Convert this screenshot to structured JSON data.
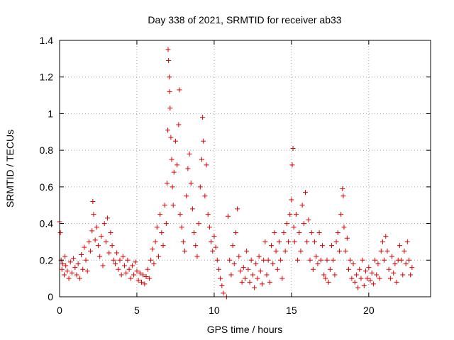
{
  "chart_data": {
    "type": "scatter",
    "title": "Day 338 of 2021, SRMTID for receiver ab33",
    "xlabel": "GPS time / hours",
    "ylabel": "SRMTID / TECUs",
    "xlim": [
      0,
      24
    ],
    "ylim": [
      0,
      1.4
    ],
    "xticks": [
      0,
      5,
      10,
      15,
      20
    ],
    "xtick_labels": [
      "0",
      "5",
      "10",
      "15",
      "20"
    ],
    "yticks": [
      0,
      0.2,
      0.4,
      0.6,
      0.8,
      1.0,
      1.2,
      1.4
    ],
    "ytick_labels": [
      "0",
      "0.2",
      "0.4",
      "0.6",
      "0.8",
      "1",
      "1.2",
      "1.4"
    ],
    "grid": true,
    "marker": "+",
    "colors": {
      "series": "#e00000",
      "grid": "#a0a0a0",
      "axes": "#000000"
    },
    "series": [
      {
        "name": "SRMTID",
        "points": [
          [
            0.0,
            0.41
          ],
          [
            0.05,
            0.35
          ],
          [
            0.1,
            0.2
          ],
          [
            0.15,
            0.15
          ],
          [
            0.2,
            0.18
          ],
          [
            0.3,
            0.12
          ],
          [
            0.35,
            0.22
          ],
          [
            0.4,
            0.17
          ],
          [
            0.5,
            0.14
          ],
          [
            0.6,
            0.1
          ],
          [
            0.7,
            0.19
          ],
          [
            0.8,
            0.13
          ],
          [
            0.9,
            0.21
          ],
          [
            1.0,
            0.16
          ],
          [
            1.1,
            0.12
          ],
          [
            1.2,
            0.18
          ],
          [
            1.3,
            0.1
          ],
          [
            1.4,
            0.23
          ],
          [
            1.5,
            0.15
          ],
          [
            1.6,
            0.27
          ],
          [
            1.7,
            0.2
          ],
          [
            1.8,
            0.14
          ],
          [
            1.9,
            0.3
          ],
          [
            2.0,
            0.25
          ],
          [
            2.1,
            0.36
          ],
          [
            2.15,
            0.52
          ],
          [
            2.2,
            0.45
          ],
          [
            2.3,
            0.31
          ],
          [
            2.4,
            0.38
          ],
          [
            2.5,
            0.28
          ],
          [
            2.6,
            0.22
          ],
          [
            2.7,
            0.33
          ],
          [
            2.8,
            0.17
          ],
          [
            2.9,
            0.4
          ],
          [
            3.0,
            0.3
          ],
          [
            3.1,
            0.43
          ],
          [
            3.2,
            0.24
          ],
          [
            3.3,
            0.35
          ],
          [
            3.4,
            0.28
          ],
          [
            3.5,
            0.2
          ],
          [
            3.6,
            0.18
          ],
          [
            3.7,
            0.24
          ],
          [
            3.8,
            0.15
          ],
          [
            3.9,
            0.2
          ],
          [
            4.0,
            0.12
          ],
          [
            4.1,
            0.22
          ],
          [
            4.2,
            0.17
          ],
          [
            4.3,
            0.13
          ],
          [
            4.4,
            0.2
          ],
          [
            4.5,
            0.15
          ],
          [
            4.6,
            0.1
          ],
          [
            4.7,
            0.17
          ],
          [
            4.8,
            0.12
          ],
          [
            4.9,
            0.19
          ],
          [
            5.0,
            0.14
          ],
          [
            5.1,
            0.09
          ],
          [
            5.2,
            0.13
          ],
          [
            5.3,
            0.08
          ],
          [
            5.4,
            0.12
          ],
          [
            5.5,
            0.07
          ],
          [
            5.6,
            0.11
          ],
          [
            5.7,
            0.15
          ],
          [
            5.8,
            0.1
          ],
          [
            5.9,
            0.2
          ],
          [
            6.0,
            0.26
          ],
          [
            6.1,
            0.18
          ],
          [
            6.2,
            0.3
          ],
          [
            6.3,
            0.38
          ],
          [
            6.4,
            0.22
          ],
          [
            6.5,
            0.45
          ],
          [
            6.6,
            0.35
          ],
          [
            6.7,
            0.28
          ],
          [
            6.8,
            0.5
          ],
          [
            6.9,
            0.4
          ],
          [
            6.95,
            0.62
          ],
          [
            7.0,
            0.91
          ],
          [
            7.02,
            1.35
          ],
          [
            7.05,
            1.29
          ],
          [
            7.1,
            1.2
          ],
          [
            7.12,
            1.12
          ],
          [
            7.15,
            1.03
          ],
          [
            7.2,
            0.87
          ],
          [
            7.25,
            0.75
          ],
          [
            7.3,
            0.6
          ],
          [
            7.35,
            0.5
          ],
          [
            7.4,
            0.68
          ],
          [
            7.5,
            0.85
          ],
          [
            7.6,
            0.72
          ],
          [
            7.7,
            0.94
          ],
          [
            7.75,
            1.13
          ],
          [
            7.8,
            0.45
          ],
          [
            7.9,
            0.38
          ],
          [
            8.0,
            0.3
          ],
          [
            8.1,
            0.25
          ],
          [
            8.2,
            0.55
          ],
          [
            8.3,
            0.7
          ],
          [
            8.4,
            0.78
          ],
          [
            8.5,
            0.62
          ],
          [
            8.6,
            0.48
          ],
          [
            8.7,
            0.35
          ],
          [
            8.8,
            0.28
          ],
          [
            8.9,
            0.22
          ],
          [
            9.0,
            0.4
          ],
          [
            9.1,
            0.6
          ],
          [
            9.2,
            0.75
          ],
          [
            9.25,
            0.98
          ],
          [
            9.3,
            0.85
          ],
          [
            9.4,
            0.55
          ],
          [
            9.5,
            0.72
          ],
          [
            9.6,
            0.45
          ],
          [
            9.7,
            0.38
          ],
          [
            9.8,
            0.3
          ],
          [
            9.9,
            0.25
          ],
          [
            10.0,
            0.33
          ],
          [
            10.1,
            0.27
          ],
          [
            10.2,
            0.2
          ],
          [
            10.3,
            0.15
          ],
          [
            10.4,
            0.1
          ],
          [
            10.5,
            0.06
          ],
          [
            10.6,
            0.02
          ],
          [
            10.8,
            0.0
          ],
          [
            10.9,
            0.44
          ],
          [
            11.0,
            0.2
          ],
          [
            11.1,
            0.12
          ],
          [
            11.2,
            0.28
          ],
          [
            11.3,
            0.18
          ],
          [
            11.4,
            0.35
          ],
          [
            11.5,
            0.48
          ],
          [
            11.6,
            0.22
          ],
          [
            11.7,
            0.14
          ],
          [
            11.8,
            0.08
          ],
          [
            11.9,
            0.16
          ],
          [
            12.0,
            0.1
          ],
          [
            12.1,
            0.25
          ],
          [
            12.2,
            0.15
          ],
          [
            12.3,
            0.08
          ],
          [
            12.4,
            0.2
          ],
          [
            12.5,
            0.12
          ],
          [
            12.6,
            0.05
          ],
          [
            12.7,
            0.18
          ],
          [
            12.8,
            0.1
          ],
          [
            12.9,
            0.22
          ],
          [
            13.0,
            0.14
          ],
          [
            13.1,
            0.07
          ],
          [
            13.2,
            0.2
          ],
          [
            13.3,
            0.3
          ],
          [
            13.4,
            0.12
          ],
          [
            13.5,
            0.2
          ],
          [
            13.6,
            0.08
          ],
          [
            13.7,
            0.28
          ],
          [
            13.8,
            0.18
          ],
          [
            13.9,
            0.35
          ],
          [
            14.0,
            0.25
          ],
          [
            14.1,
            0.15
          ],
          [
            14.2,
            0.3
          ],
          [
            14.3,
            0.2
          ],
          [
            14.4,
            0.1
          ],
          [
            14.5,
            0.35
          ],
          [
            14.6,
            0.25
          ],
          [
            14.7,
            0.4
          ],
          [
            14.8,
            0.3
          ],
          [
            14.9,
            0.45
          ],
          [
            15.0,
            0.53
          ],
          [
            15.05,
            0.72
          ],
          [
            15.1,
            0.81
          ],
          [
            15.15,
            0.38
          ],
          [
            15.2,
            0.3
          ],
          [
            15.3,
            0.45
          ],
          [
            15.4,
            0.2
          ],
          [
            15.5,
            0.35
          ],
          [
            15.6,
            0.25
          ],
          [
            15.7,
            0.5
          ],
          [
            15.8,
            0.4
          ],
          [
            15.9,
            0.57
          ],
          [
            16.0,
            0.3
          ],
          [
            16.1,
            0.42
          ],
          [
            16.2,
            0.2
          ],
          [
            16.3,
            0.35
          ],
          [
            16.4,
            0.15
          ],
          [
            16.5,
            0.3
          ],
          [
            16.6,
            0.22
          ],
          [
            16.7,
            0.18
          ],
          [
            16.8,
            0.35
          ],
          [
            16.9,
            0.2
          ],
          [
            17.0,
            0.28
          ],
          [
            17.1,
            0.12
          ],
          [
            17.2,
            0.1
          ],
          [
            17.3,
            0.2
          ],
          [
            17.4,
            0.08
          ],
          [
            17.5,
            0.15
          ],
          [
            17.6,
            0.28
          ],
          [
            17.7,
            0.2
          ],
          [
            17.8,
            0.12
          ],
          [
            17.9,
            0.3
          ],
          [
            18.0,
            0.35
          ],
          [
            18.1,
            0.25
          ],
          [
            18.2,
            0.45
          ],
          [
            18.3,
            0.59
          ],
          [
            18.35,
            0.55
          ],
          [
            18.4,
            0.38
          ],
          [
            18.5,
            0.25
          ],
          [
            18.6,
            0.32
          ],
          [
            18.7,
            0.15
          ],
          [
            18.8,
            0.2
          ],
          [
            18.9,
            0.1
          ],
          [
            19.0,
            0.18
          ],
          [
            19.1,
            0.08
          ],
          [
            19.2,
            0.12
          ],
          [
            19.3,
            0.05
          ],
          [
            19.4,
            0.15
          ],
          [
            19.5,
            0.1
          ],
          [
            19.6,
            0.2
          ],
          [
            19.7,
            0.06
          ],
          [
            19.8,
            0.14
          ],
          [
            19.9,
            0.1
          ],
          [
            20.0,
            0.16
          ],
          [
            20.1,
            0.09
          ],
          [
            20.2,
            0.13
          ],
          [
            20.3,
            0.07
          ],
          [
            20.4,
            0.2
          ],
          [
            20.5,
            0.12
          ],
          [
            20.6,
            0.18
          ],
          [
            20.7,
            0.1
          ],
          [
            20.8,
            0.25
          ],
          [
            20.9,
            0.3
          ],
          [
            21.0,
            0.2
          ],
          [
            21.1,
            0.33
          ],
          [
            21.2,
            0.25
          ],
          [
            21.3,
            0.15
          ],
          [
            21.4,
            0.1
          ],
          [
            21.5,
            0.22
          ],
          [
            21.6,
            0.13
          ],
          [
            21.7,
            0.18
          ],
          [
            21.8,
            0.08
          ],
          [
            21.9,
            0.2
          ],
          [
            22.0,
            0.28
          ],
          [
            22.1,
            0.2
          ],
          [
            22.2,
            0.12
          ],
          [
            22.3,
            0.25
          ],
          [
            22.4,
            0.18
          ],
          [
            22.5,
            0.3
          ],
          [
            22.6,
            0.2
          ],
          [
            22.7,
            0.12
          ],
          [
            22.8,
            0.16
          ]
        ]
      }
    ]
  }
}
